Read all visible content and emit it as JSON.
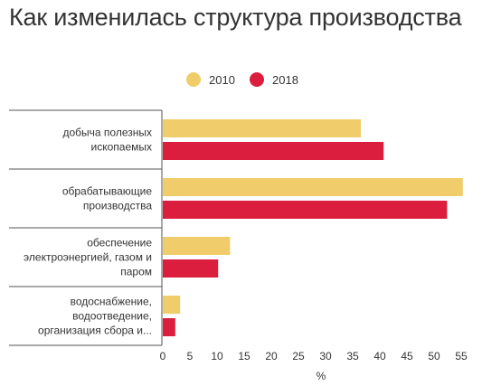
{
  "chart_data": {
    "type": "bar",
    "orientation": "horizontal",
    "title": "Как изменилась структура производства",
    "categories": [
      [
        "добыча полезных",
        "ископаемых"
      ],
      [
        "обрабатывающие",
        "производства"
      ],
      [
        "обеспечение",
        "электроэнергией, газом и",
        "паром"
      ],
      [
        "водоснабжение,",
        "водоотведение,",
        "организация сбора и..."
      ]
    ],
    "series": [
      {
        "name": "2010",
        "color": "#f0cd6a",
        "values": [
          36.5,
          55.3,
          12.4,
          3.2
        ]
      },
      {
        "name": "2018",
        "color": "#dc1e3e",
        "values": [
          40.7,
          52.4,
          10.2,
          2.3
        ]
      }
    ],
    "xlabel": "%",
    "ylabel": "",
    "xlim": [
      0,
      57
    ],
    "xticks": [
      0,
      5,
      10,
      15,
      20,
      25,
      30,
      35,
      40,
      45,
      50,
      55
    ],
    "grid": false,
    "legend_position": "top-center"
  }
}
